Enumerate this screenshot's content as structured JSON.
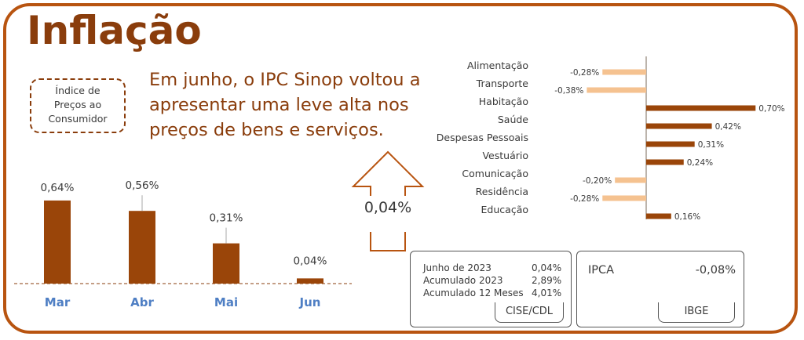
{
  "title": "Inflação",
  "badge": {
    "lines": [
      "Índice de",
      "Preços ao",
      "Consumidor"
    ]
  },
  "headline": "Em junho, o IPC Sinop voltou a apresentar uma leve alta nos preços de bens e serviços.",
  "highlight_value": "0,04%",
  "colors": {
    "accent": "#8a3d0c",
    "bar_dark": "#9a4509",
    "bar_light": "#f5c290",
    "month_label": "#4f7fc4"
  },
  "chart_data": [
    {
      "type": "bar",
      "categories": [
        "Mar",
        "Abr",
        "Mai",
        "Jun"
      ],
      "values": [
        0.64,
        0.56,
        0.31,
        0.04
      ],
      "labels": [
        "0,64%",
        "0,56%",
        "0,31%",
        "0,04%"
      ],
      "ylim": [
        0,
        0.7
      ]
    },
    {
      "type": "bar",
      "orientation": "horizontal",
      "categories": [
        "Alimentação",
        "Transporte",
        "Habitação",
        "Saúde",
        "Despesas Pessoais",
        "Vestuário",
        "Comunicação",
        "Residência",
        "Educação"
      ],
      "values": [
        -0.28,
        -0.38,
        0.7,
        0.42,
        0.31,
        0.24,
        -0.2,
        -0.28,
        0.16
      ],
      "labels": [
        "-0,28%",
        "-0,38%",
        "0,70%",
        "0,42%",
        "0,31%",
        "0,24%",
        "-0,20%",
        "-0,28%",
        "0,16%"
      ],
      "xlim": [
        -0.4,
        0.75
      ]
    }
  ],
  "cise_card": {
    "rows": [
      {
        "key": "Junho de 2023",
        "value": "0,04%"
      },
      {
        "key": "Acumulado 2023",
        "value": "2,89%"
      },
      {
        "key": "Acumulado 12 Meses",
        "value": "4,01%"
      }
    ],
    "source": "CISE/CDL"
  },
  "ibge_card": {
    "label": "IPCA",
    "value": "-0,08%",
    "source": "IBGE"
  }
}
